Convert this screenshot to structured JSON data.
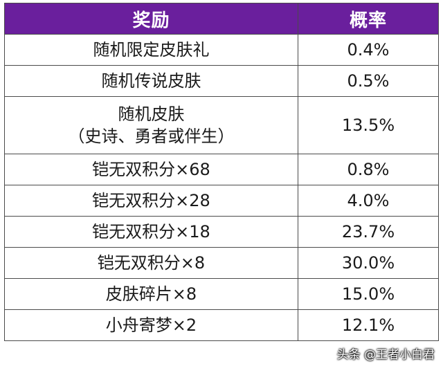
{
  "table": {
    "headers": {
      "reward": "奖励",
      "probability": "概率"
    },
    "rows": [
      {
        "reward": "随机限定皮肤礼",
        "probability": "0.4%"
      },
      {
        "reward": "随机传说皮肤",
        "probability": "0.5%"
      },
      {
        "reward_line1": "随机皮肤",
        "reward_line2": "（史诗、勇者或伴生）",
        "probability": "13.5%"
      },
      {
        "reward": "铠无双积分×68",
        "probability": "0.8%"
      },
      {
        "reward": "铠无双积分×28",
        "probability": "4.0%"
      },
      {
        "reward": "铠无双积分×18",
        "probability": "23.7%"
      },
      {
        "reward": "铠无双积分×8",
        "probability": "30.0%"
      },
      {
        "reward": "皮肤碎片×8",
        "probability": "15.0%"
      },
      {
        "reward": "小舟寄梦×2",
        "probability": "12.1%"
      }
    ]
  },
  "watermark": "头条 @王者小白君",
  "colors": {
    "header_bg": "#6a1f9d",
    "header_text": "#ffffff",
    "border": "#4a4a4a"
  }
}
